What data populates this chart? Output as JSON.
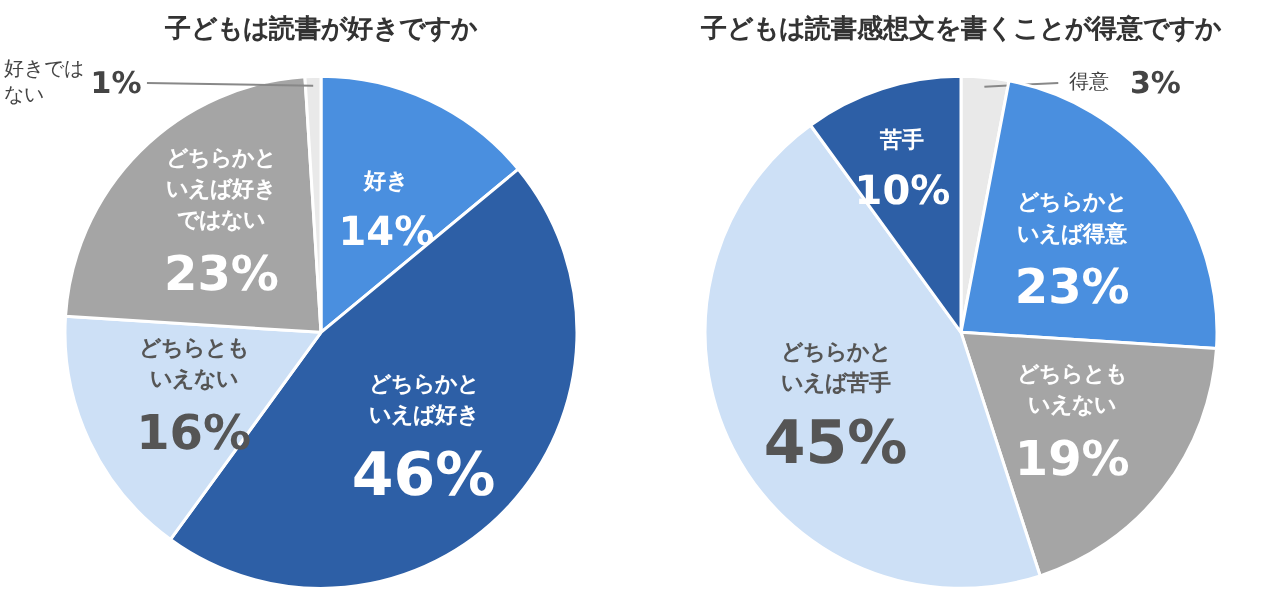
{
  "chart_data": [
    {
      "type": "pie",
      "title": "子どもは読書が好きですか",
      "categories": [
        "好き",
        "どちらかといえば好き",
        "どちらともいえない",
        "どちらかといえば好きではない",
        "好きではない"
      ],
      "values": [
        14,
        46,
        16,
        23,
        1
      ],
      "colors": [
        "#4a8fdf",
        "#2d5fa6",
        "#cde0f6",
        "#a5a5a5",
        "#e9e9e9"
      ],
      "value_labels": [
        "14%",
        "46%",
        "16%",
        "23%",
        "1%"
      ]
    },
    {
      "type": "pie",
      "title": "子どもは読書感想文を書くことが得意ですか",
      "categories": [
        "得意",
        "どちらかといえば得意",
        "どちらともいえない",
        "どちらかといえば苦手",
        "苦手"
      ],
      "values": [
        3,
        23,
        19,
        45,
        10
      ],
      "colors": [
        "#e9e9e9",
        "#4a8fdf",
        "#a5a5a5",
        "#cde0f6",
        "#2d5fa6"
      ],
      "value_labels": [
        "3%",
        "23%",
        "19%",
        "45%",
        "10%"
      ]
    }
  ]
}
